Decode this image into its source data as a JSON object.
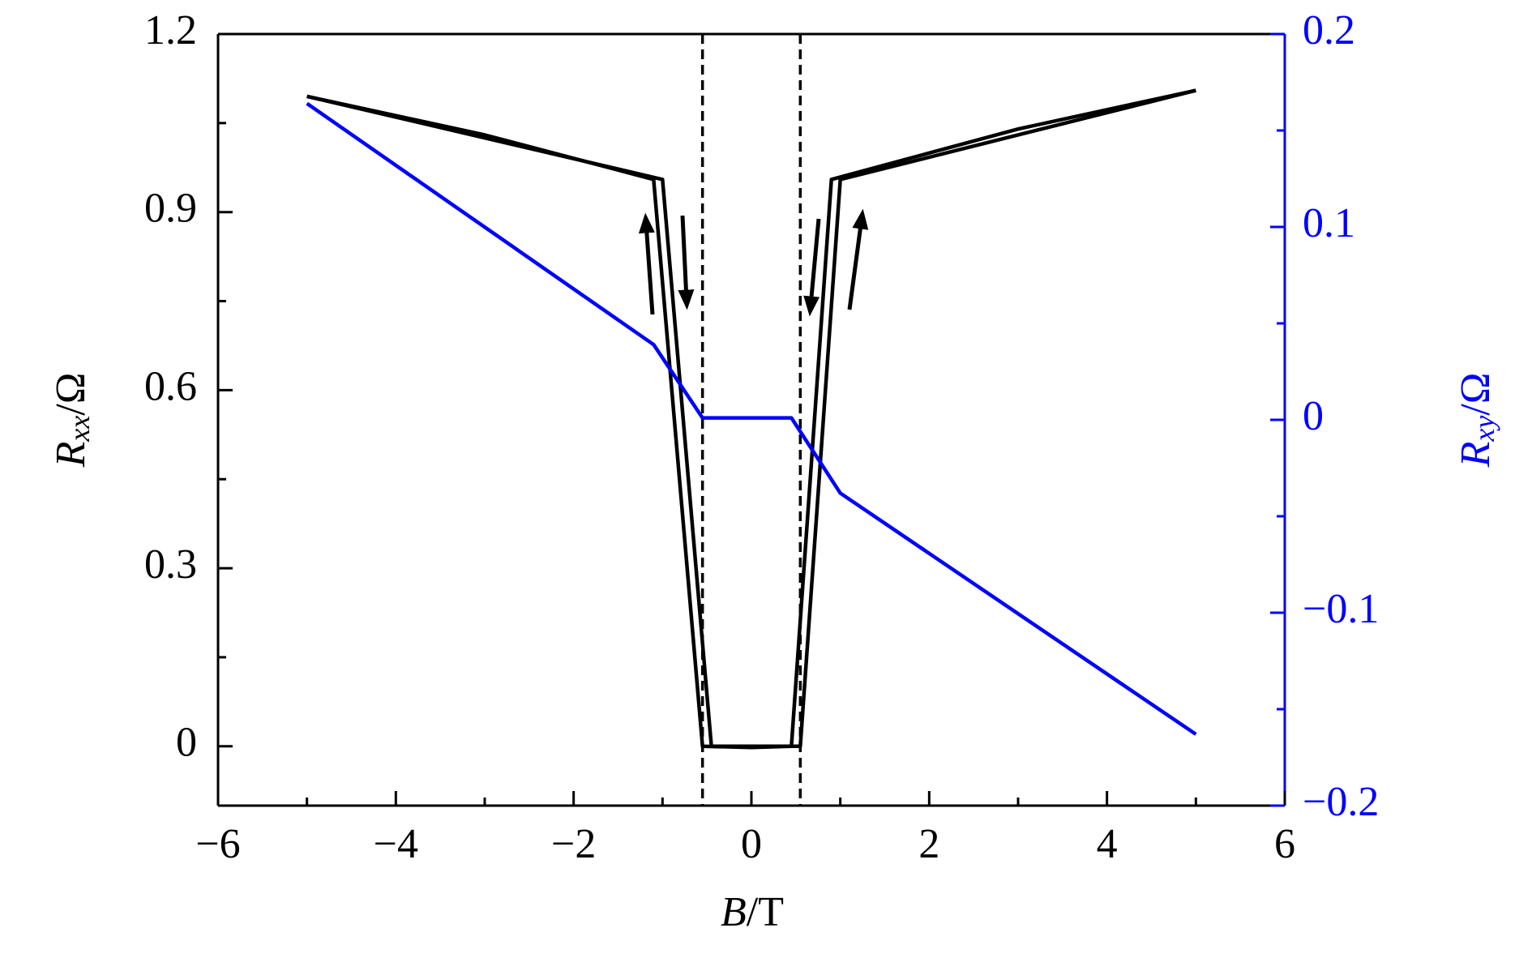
{
  "chart_data": {
    "type": "line",
    "xlabel": [
      "B",
      "/T"
    ],
    "ylabel": [
      "R",
      "xx",
      "/Ω"
    ],
    "y2label": [
      "R",
      "xy",
      "/Ω"
    ],
    "xlim": [
      -6,
      6
    ],
    "xticks": [
      {
        "value": -6,
        "label": "−6"
      },
      {
        "value": -4,
        "label": "−4"
      },
      {
        "value": -2,
        "label": "−2"
      },
      0,
      2,
      4,
      6
    ],
    "ylim": [
      -0.1,
      1.2
    ],
    "yticks": [
      0,
      0.3,
      0.6,
      0.9,
      1.2
    ],
    "y2lim": [
      -0.2,
      0.2
    ],
    "y2ticks": [
      {
        "value": -0.2,
        "label": "−0.2"
      },
      {
        "value": -0.1,
        "label": "−0.1"
      },
      0,
      0.1,
      0.2
    ],
    "y2color": "#0000ff",
    "minor_ticks": true,
    "vlines": [
      -0.55,
      0.55
    ],
    "series": [
      {
        "color": "#000000",
        "x": [
          -5,
          -3,
          -1.1,
          -0.55,
          0,
          0.45,
          0.9,
          3,
          5
        ],
        "values": [
          1.095,
          1.03,
          0.955,
          0,
          -0.002,
          0,
          0.955,
          1.04,
          1.105
        ]
      },
      {
        "color": "#000000",
        "x": [
          -5,
          -1,
          -0.45,
          0.55,
          1.0,
          5
        ],
        "values": [
          1.095,
          0.955,
          0,
          0,
          0.955,
          1.105
        ]
      },
      {
        "color": "#0000ff",
        "axis": "y2",
        "x": [
          -5,
          -1.1,
          -0.55,
          0.45,
          1.0,
          5
        ],
        "values": [
          0.164,
          0.039,
          0.001,
          0.001,
          -0.038,
          -0.163
        ]
      }
    ]
  }
}
